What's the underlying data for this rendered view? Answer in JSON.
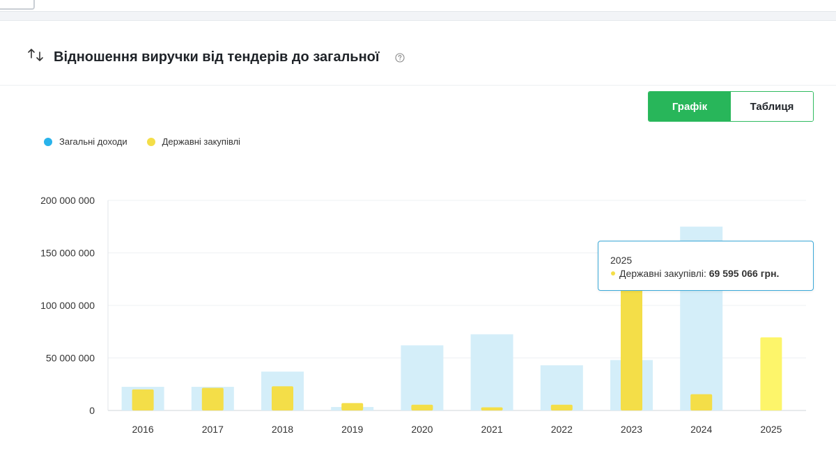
{
  "header": {
    "title": "Відношення виручки від тендерів до загальної",
    "sort_icon": "sort-arrows-icon",
    "help_icon": "question-circle-icon"
  },
  "view_toggle": {
    "chart_label": "Графік",
    "table_label": "Таблиця",
    "active": "chart"
  },
  "colors": {
    "total": "#d4eef9",
    "procurement": "#f4de48",
    "procurement_highlight": "#fdf56a",
    "legend_total": "#29b3eb",
    "legend_procurement": "#f4de48",
    "accent": "#28b65a",
    "tooltip_border": "#3aa8d8"
  },
  "tooltip": {
    "year": "2025",
    "series_label": "Державні закупівлі: ",
    "value": "69 595 066 грн."
  },
  "chart_data": {
    "type": "bar",
    "title": "",
    "xlabel": "",
    "ylabel": "",
    "categories": [
      "2016",
      "2017",
      "2018",
      "2019",
      "2020",
      "2021",
      "2022",
      "2023",
      "2024",
      "2025"
    ],
    "series": [
      {
        "name": "Загальні доходи",
        "values": [
          22500000,
          22500000,
          37000000,
          3300000,
          62000000,
          72500000,
          43000000,
          48000000,
          175000000,
          null
        ]
      },
      {
        "name": "Державні закупівлі",
        "values": [
          20000000,
          21500000,
          23000000,
          7000000,
          5500000,
          3000000,
          5500000,
          118000000,
          15500000,
          69595066
        ]
      }
    ],
    "ylim": [
      0,
      200000000
    ],
    "yticks": [
      0,
      50000000,
      100000000,
      150000000,
      200000000
    ],
    "ytick_labels": [
      "0",
      "50 000 000",
      "100 000 000",
      "150 000 000",
      "200 000 000"
    ],
    "grid": true,
    "legend_position": "top-left",
    "highlighted_category": "2025"
  }
}
